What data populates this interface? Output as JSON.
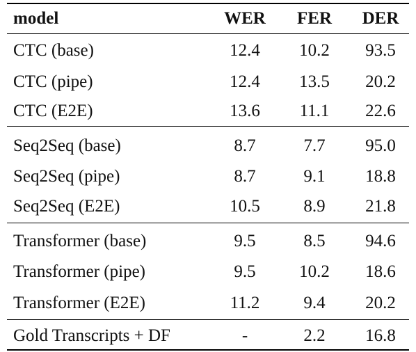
{
  "table": {
    "headers": [
      "model",
      "WER",
      "FER",
      "DER"
    ],
    "groups": [
      [
        {
          "model": "CTC (base)",
          "wer": "12.4",
          "fer": "10.2",
          "der": "93.5"
        },
        {
          "model": "CTC (pipe)",
          "wer": "12.4",
          "fer": "13.5",
          "der": "20.2"
        },
        {
          "model": "CTC (E2E)",
          "wer": "13.6",
          "fer": "11.1",
          "der": "22.6"
        }
      ],
      [
        {
          "model": "Seq2Seq (base)",
          "wer": "8.7",
          "fer": "7.7",
          "der": "95.0"
        },
        {
          "model": "Seq2Seq (pipe)",
          "wer": "8.7",
          "fer": "9.1",
          "der": "18.8"
        },
        {
          "model": "Seq2Seq (E2E)",
          "wer": "10.5",
          "fer": "8.9",
          "der": "21.8"
        }
      ],
      [
        {
          "model": "Transformer (base)",
          "wer": "9.5",
          "fer": "8.5",
          "der": "94.6"
        },
        {
          "model": "Transformer (pipe)",
          "wer": "9.5",
          "fer": "10.2",
          "der": "18.6"
        },
        {
          "model": "Transformer (E2E)",
          "wer": "11.2",
          "fer": "9.4",
          "der": "20.2"
        }
      ],
      [
        {
          "model": "Gold Transcripts + DF",
          "wer": "-",
          "fer": "2.2",
          "der": "16.8"
        }
      ]
    ]
  }
}
